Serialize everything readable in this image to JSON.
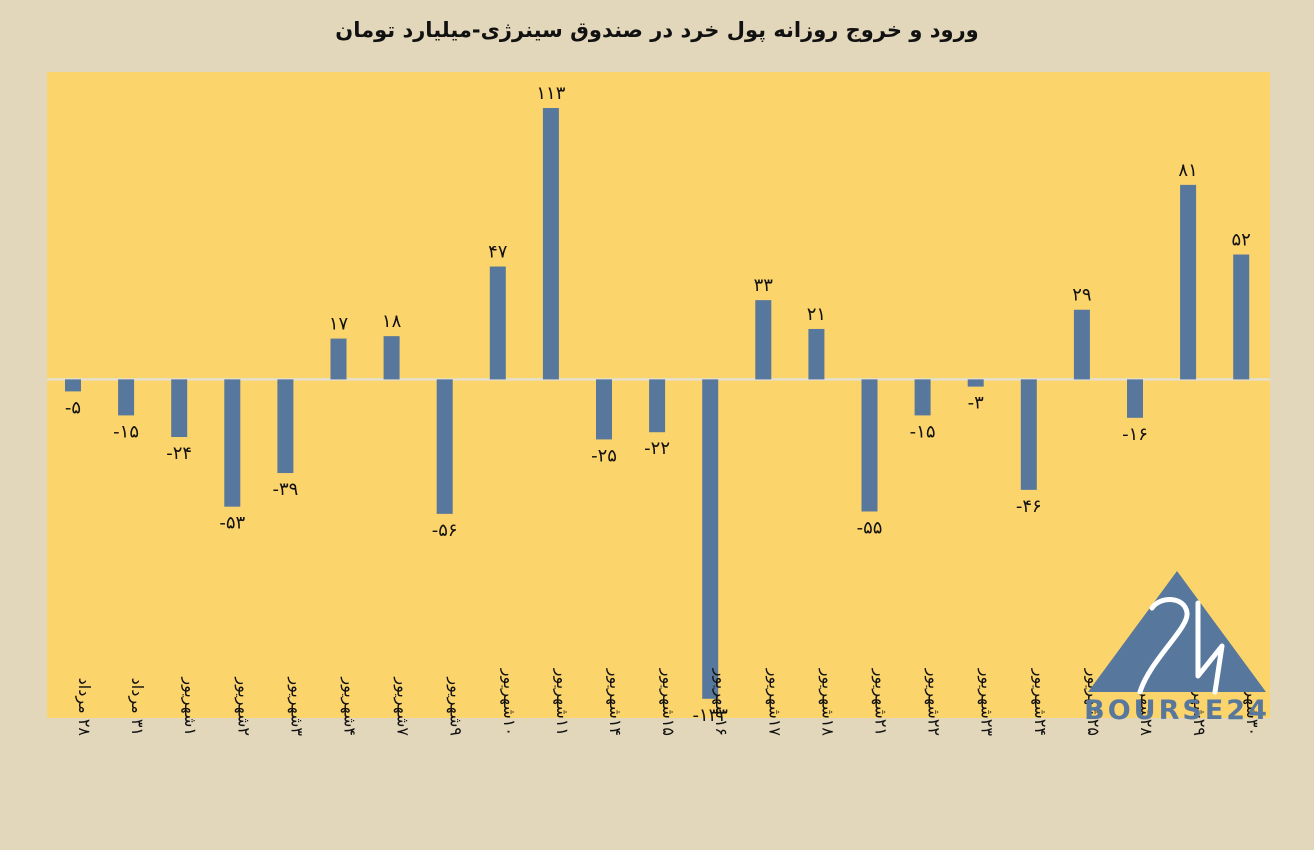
{
  "chart_data": {
    "type": "bar",
    "title": "ورود و خروج روزانه پول خرد در صندوق سینرژی-میلیارد تومان",
    "xlabel": "",
    "ylabel": "",
    "ylim": [
      -141,
      128
    ],
    "grid": false,
    "categories": [
      "۲۸ مرداد",
      "۳۱ مرداد",
      "۱شهریور",
      "۲شهریور",
      "۳شهریور",
      "۴شهریور",
      "۷شهریور",
      "۹شهریور",
      "۱۰شهریور",
      "۱۱شهریور",
      "۱۴شهریور",
      "۱۵شهریور",
      "۱۶شهریور",
      "۱۷شهریور",
      "۱۸شهریور",
      "۲۱شهریور",
      "۲۲شهریور",
      "۲۳شهریور",
      "۲۴شهریور",
      "۲۵شهریور",
      "۲۸شهریور",
      "۲۹شهریور",
      "۳۰شهریور"
    ],
    "values": [
      -5,
      -15,
      -24,
      -53,
      -39,
      17,
      18,
      -56,
      47,
      113,
      -25,
      -22,
      -133,
      33,
      21,
      -55,
      -15,
      -3,
      -46,
      29,
      -16,
      81,
      52
    ],
    "data_labels": [
      "-۵",
      "-۱۵",
      "-۲۴",
      "-۵۳",
      "-۳۹",
      "۱۷",
      "۱۸",
      "-۵۶",
      "۴۷",
      "۱۱۳",
      "-۲۵",
      "-۲۲",
      "-۱۳۳",
      "۳۳",
      "۲۱",
      "-۵۵",
      "-۱۵",
      "-۳",
      "-۴۶",
      "۲۹",
      "-۱۶",
      "۸۱",
      "۵۲"
    ],
    "colors": {
      "bar": "#57779c",
      "plot_background": "#fcd46c",
      "page_background": "#e2d7bb",
      "zero_line": "#e6dfcc"
    }
  },
  "logo": {
    "text": "BOURSE24",
    "icon": "triangle-24-logo",
    "color": "#57779c"
  }
}
